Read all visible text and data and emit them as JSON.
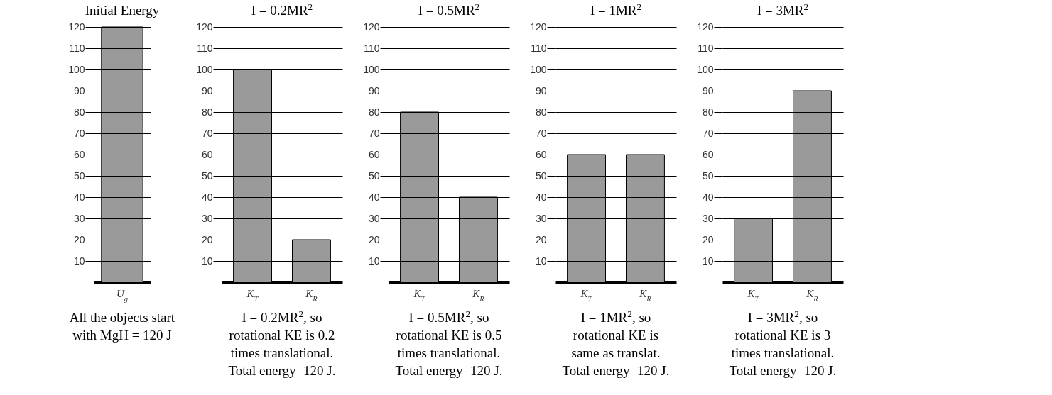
{
  "chart_data": [
    {
      "type": "bar",
      "title": "Initial Energy",
      "categories": [
        "U$_{g}$"
      ],
      "values": [
        120
      ],
      "color": "#9a9a9a",
      "ylim": [
        0,
        120
      ],
      "yticks": [
        10,
        20,
        30,
        40,
        50,
        60,
        70,
        80,
        90,
        100,
        110,
        120
      ],
      "grid": "y",
      "annotations": [
        "All the objects start",
        "with MgH = 120 J"
      ]
    },
    {
      "type": "bar",
      "title": "I = 0.2MR$^{2}$",
      "categories": [
        "K$_{T}$",
        "K$_{R}$"
      ],
      "values": [
        100,
        20
      ],
      "color": "#9a9a9a",
      "ylim": [
        0,
        120
      ],
      "yticks": [
        10,
        20,
        30,
        40,
        50,
        60,
        70,
        80,
        90,
        100,
        110,
        120
      ],
      "grid": "y",
      "annotations": [
        "I = 0.2MR$^{2}$, so",
        "rotational KE is 0.2",
        "times translational.",
        "Total energy=120 J."
      ]
    },
    {
      "type": "bar",
      "title": "I = 0.5MR$^{2}$",
      "categories": [
        "K$_{T}$",
        "K$_{R}$"
      ],
      "values": [
        80,
        40
      ],
      "color": "#9a9a9a",
      "ylim": [
        0,
        120
      ],
      "yticks": [
        10,
        20,
        30,
        40,
        50,
        60,
        70,
        80,
        90,
        100,
        110,
        120
      ],
      "grid": "y",
      "annotations": [
        "I = 0.5MR$^{2}$, so",
        "rotational KE is 0.5",
        "times translational.",
        "Total energy=120 J."
      ]
    },
    {
      "type": "bar",
      "title": "I = 1MR$^{2}$",
      "categories": [
        "K$_{T}$",
        "K$_{R}$"
      ],
      "values": [
        60,
        60
      ],
      "color": "#9a9a9a",
      "ylim": [
        0,
        120
      ],
      "yticks": [
        10,
        20,
        30,
        40,
        50,
        60,
        70,
        80,
        90,
        100,
        110,
        120
      ],
      "grid": "y",
      "annotations": [
        "I = 1MR$^{2}$, so",
        "rotational KE is",
        "same as translat.",
        "Total energy=120 J."
      ]
    },
    {
      "type": "bar",
      "title": "I = 3MR$^{2}$",
      "categories": [
        "K$_{T}$",
        "K$_{R}$"
      ],
      "values": [
        30,
        90
      ],
      "color": "#9a9a9a",
      "ylim": [
        0,
        120
      ],
      "yticks": [
        10,
        20,
        30,
        40,
        50,
        60,
        70,
        80,
        90,
        100,
        110,
        120
      ],
      "grid": "y",
      "annotations": [
        "I = 3MR$^{2}$, so",
        "rotational KE is 3",
        "times translational.",
        "Total energy=120 J."
      ]
    }
  ]
}
